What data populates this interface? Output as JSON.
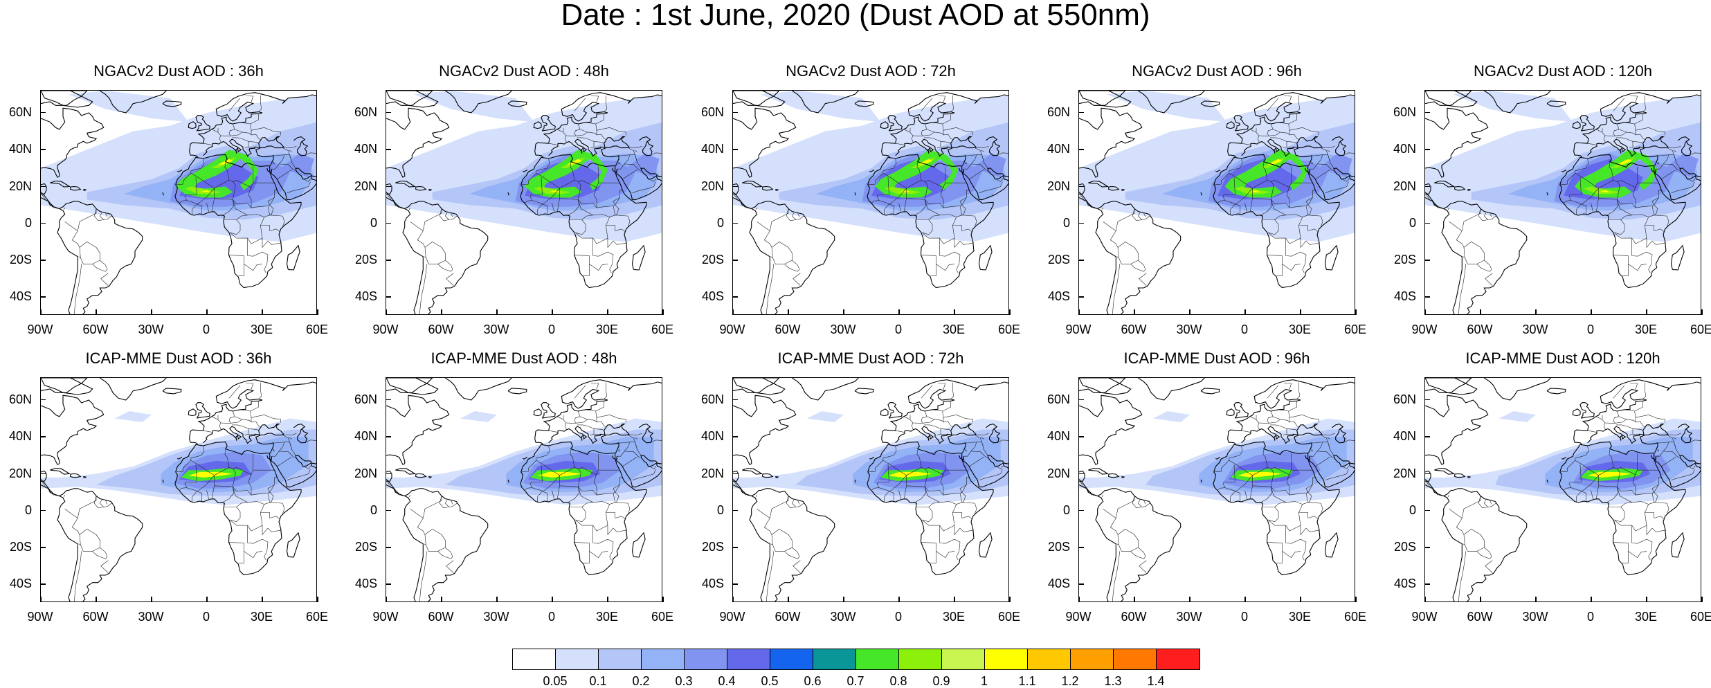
{
  "title": "Date : 1st June, 2020 (Dust AOD at 550nm)",
  "lat_labels": [
    "60N",
    "40N",
    "20N",
    "0",
    "20S",
    "40S"
  ],
  "lon_labels": [
    "90W",
    "60W",
    "30W",
    "0",
    "30E",
    "60E"
  ],
  "map_extent": {
    "lon": [
      -90,
      60
    ],
    "lat": [
      -50,
      72
    ]
  },
  "panels": [
    {
      "title": "NGACv2 Dust AOD : 36h",
      "model": "NGACv2",
      "lead": "36h",
      "row": 0,
      "col": 0
    },
    {
      "title": "NGACv2 Dust AOD : 48h",
      "model": "NGACv2",
      "lead": "48h",
      "row": 0,
      "col": 1
    },
    {
      "title": "NGACv2 Dust AOD : 72h",
      "model": "NGACv2",
      "lead": "72h",
      "row": 0,
      "col": 2
    },
    {
      "title": "NGACv2 Dust AOD : 96h",
      "model": "NGACv2",
      "lead": "96h",
      "row": 0,
      "col": 3
    },
    {
      "title": "NGACv2 Dust AOD : 120h",
      "model": "NGACv2",
      "lead": "120h",
      "row": 0,
      "col": 4
    },
    {
      "title": "ICAP-MME Dust AOD : 36h",
      "model": "ICAP-MME",
      "lead": "36h",
      "row": 1,
      "col": 0
    },
    {
      "title": "ICAP-MME Dust AOD : 48h",
      "model": "ICAP-MME",
      "lead": "48h",
      "row": 1,
      "col": 1
    },
    {
      "title": "ICAP-MME Dust AOD : 72h",
      "model": "ICAP-MME",
      "lead": "72h",
      "row": 1,
      "col": 2
    },
    {
      "title": "ICAP-MME Dust AOD : 96h",
      "model": "ICAP-MME",
      "lead": "96h",
      "row": 1,
      "col": 3
    },
    {
      "title": "ICAP-MME Dust AOD : 120h",
      "model": "ICAP-MME",
      "lead": "120h",
      "row": 1,
      "col": 4
    }
  ],
  "colorbar": {
    "labels": [
      "0.05",
      "0.1",
      "0.2",
      "0.3",
      "0.4",
      "0.5",
      "0.6",
      "0.7",
      "0.8",
      "0.9",
      "1",
      "1.1",
      "1.2",
      "1.3",
      "1.4"
    ],
    "colors": [
      "#ffffff",
      "#d4e0fc",
      "#b4c6f8",
      "#94b2f6",
      "#8094f0",
      "#6468ea",
      "#1464ee",
      "#0a9696",
      "#46e628",
      "#8cf00a",
      "#c8f550",
      "#ffff00",
      "#ffc800",
      "#ffa000",
      "#ff7800",
      "#ff1e1e"
    ]
  }
}
